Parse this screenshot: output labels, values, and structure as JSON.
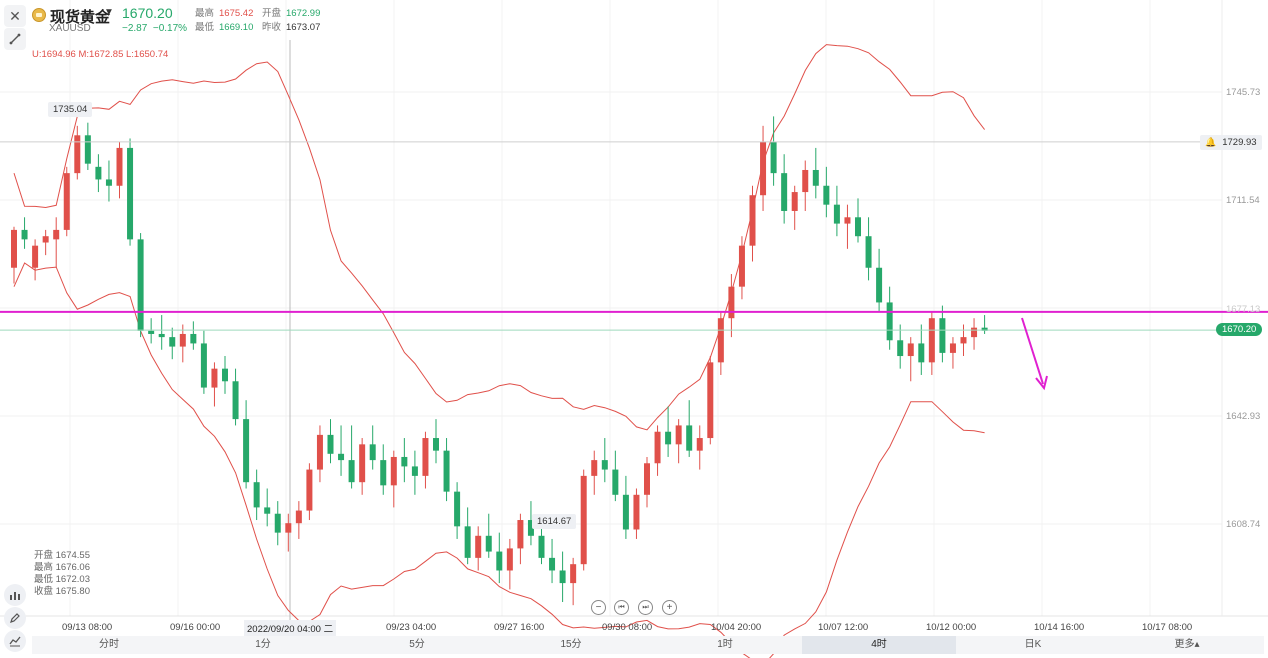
{
  "header": {
    "name": "现货黄金",
    "code": "XAUUSD",
    "price": "1670.20",
    "change": "−2.87",
    "change_pct": "−0.17%",
    "high_label": "最高",
    "high": "1675.42",
    "open_label": "开盘",
    "open": "1672.99",
    "low_label": "最低",
    "low": "1669.10",
    "prev_label": "昨收",
    "prev": "1673.07"
  },
  "boll": "U:1694.96  M:1672.85  L:1650.74",
  "price_axis": [
    "1745.73",
    "1711.54",
    "1677.13",
    "1642.93",
    "1608.74"
  ],
  "tags": {
    "alert": "1729.93",
    "last": "1670.20",
    "high": "1735.04",
    "low": "1614.67"
  },
  "ohlc": {
    "open": "开盘 1674.55",
    "high": "最高 1676.06",
    "low": "最低 1672.03",
    "close": "收盘 1675.80"
  },
  "time_axis": [
    "09/13 08:00",
    "09/16 00:00",
    "09/23 04:00",
    "09/27 16:00",
    "09/30 08:00",
    "10/04 20:00",
    "10/07 12:00",
    "10/12 00:00",
    "10/14 16:00",
    "10/17 08:00"
  ],
  "crosshair_time": "2022/09/20 04:00 二",
  "zoom": {
    "out": "−",
    "start": "⏮",
    "end": "⏭",
    "in": "+"
  },
  "tabs": [
    {
      "label": "分时",
      "active": false
    },
    {
      "label": "1分",
      "active": false
    },
    {
      "label": "5分",
      "active": false
    },
    {
      "label": "15分",
      "active": false
    },
    {
      "label": "1时",
      "active": false
    },
    {
      "label": "4时",
      "active": true
    },
    {
      "label": "日K",
      "active": false
    },
    {
      "label": "更多▴",
      "active": false
    }
  ],
  "colors": {
    "up": "#e0504a",
    "down": "#26a86a",
    "band": "#e0504a",
    "hline": "#e020d0",
    "arrow": "#e020d0"
  },
  "icons": [
    "close-icon",
    "draw-line-icon",
    "indicator-icon",
    "pencil-icon",
    "trend-icon",
    "bell-icon",
    "gold-coin-icon"
  ],
  "chart_data": {
    "type": "candlestick",
    "series_name": "XAUUSD",
    "prices": {
      "axis_ticks": [
        1745.73,
        1711.54,
        1677.13,
        1642.93,
        1608.74
      ],
      "last": 1670.2,
      "alert_level": 1729.93,
      "highest_marked": 1735.04,
      "lowest_marked": 1614.67,
      "horizontal_line": 1676.0
    },
    "candles": [
      [
        1690,
        1703,
        1685,
        1702
      ],
      [
        1702,
        1706,
        1696,
        1699
      ],
      [
        1690,
        1699,
        1686,
        1697
      ],
      [
        1698,
        1702,
        1694,
        1700
      ],
      [
        1699,
        1706,
        1690,
        1702
      ],
      [
        1702,
        1722,
        1700,
        1720
      ],
      [
        1720,
        1735,
        1718,
        1732
      ],
      [
        1732,
        1736,
        1721,
        1723
      ],
      [
        1722,
        1726,
        1714,
        1718
      ],
      [
        1718,
        1724,
        1711,
        1716
      ],
      [
        1716,
        1730,
        1712,
        1728
      ],
      [
        1728,
        1731,
        1697,
        1699
      ],
      [
        1699,
        1701,
        1668,
        1670
      ],
      [
        1670,
        1674,
        1666,
        1669
      ],
      [
        1669,
        1675,
        1664,
        1668
      ],
      [
        1668,
        1671,
        1661,
        1665
      ],
      [
        1665,
        1672,
        1660,
        1669
      ],
      [
        1669,
        1673,
        1664,
        1666
      ],
      [
        1666,
        1670,
        1650,
        1652
      ],
      [
        1652,
        1660,
        1646,
        1658
      ],
      [
        1658,
        1662,
        1650,
        1654
      ],
      [
        1654,
        1658,
        1640,
        1642
      ],
      [
        1642,
        1648,
        1620,
        1622
      ],
      [
        1622,
        1626,
        1610,
        1614
      ],
      [
        1614,
        1620,
        1608,
        1612
      ],
      [
        1612,
        1616,
        1602,
        1606
      ],
      [
        1606,
        1612,
        1600,
        1609
      ],
      [
        1609,
        1616,
        1604,
        1613
      ],
      [
        1613,
        1628,
        1610,
        1626
      ],
      [
        1626,
        1640,
        1622,
        1637
      ],
      [
        1637,
        1642,
        1628,
        1631
      ],
      [
        1631,
        1640,
        1624,
        1629
      ],
      [
        1629,
        1640,
        1620,
        1622
      ],
      [
        1622,
        1636,
        1618,
        1634
      ],
      [
        1634,
        1640,
        1626,
        1629
      ],
      [
        1629,
        1634,
        1618,
        1621
      ],
      [
        1621,
        1632,
        1614,
        1630
      ],
      [
        1630,
        1636,
        1622,
        1627
      ],
      [
        1627,
        1632,
        1618,
        1624
      ],
      [
        1624,
        1638,
        1620,
        1636
      ],
      [
        1636,
        1642,
        1628,
        1632
      ],
      [
        1632,
        1636,
        1616,
        1619
      ],
      [
        1619,
        1622,
        1604,
        1608
      ],
      [
        1608,
        1614,
        1596,
        1598
      ],
      [
        1598,
        1608,
        1594,
        1605
      ],
      [
        1605,
        1612,
        1598,
        1600
      ],
      [
        1600,
        1606,
        1590,
        1594
      ],
      [
        1594,
        1604,
        1588,
        1601
      ],
      [
        1601,
        1612,
        1596,
        1610
      ],
      [
        1610,
        1616,
        1602,
        1605
      ],
      [
        1605,
        1610,
        1596,
        1598
      ],
      [
        1598,
        1604,
        1590,
        1594
      ],
      [
        1594,
        1600,
        1584,
        1590
      ],
      [
        1590,
        1598,
        1583,
        1596
      ],
      [
        1596,
        1626,
        1594,
        1624
      ],
      [
        1624,
        1632,
        1618,
        1629
      ],
      [
        1629,
        1636,
        1622,
        1626
      ],
      [
        1626,
        1632,
        1616,
        1618
      ],
      [
        1618,
        1624,
        1604,
        1607
      ],
      [
        1607,
        1620,
        1604,
        1618
      ],
      [
        1618,
        1630,
        1614,
        1628
      ],
      [
        1628,
        1640,
        1624,
        1638
      ],
      [
        1638,
        1646,
        1630,
        1634
      ],
      [
        1634,
        1642,
        1628,
        1640
      ],
      [
        1640,
        1648,
        1630,
        1632
      ],
      [
        1632,
        1640,
        1626,
        1636
      ],
      [
        1636,
        1662,
        1634,
        1660
      ],
      [
        1660,
        1676,
        1656,
        1674
      ],
      [
        1674,
        1688,
        1668,
        1684
      ],
      [
        1684,
        1700,
        1680,
        1697
      ],
      [
        1697,
        1716,
        1692,
        1713
      ],
      [
        1713,
        1735,
        1708,
        1730
      ],
      [
        1730,
        1738,
        1716,
        1720
      ],
      [
        1720,
        1726,
        1704,
        1708
      ],
      [
        1708,
        1716,
        1702,
        1714
      ],
      [
        1714,
        1724,
        1708,
        1721
      ],
      [
        1721,
        1728,
        1712,
        1716
      ],
      [
        1716,
        1722,
        1706,
        1710
      ],
      [
        1710,
        1716,
        1700,
        1704
      ],
      [
        1704,
        1710,
        1696,
        1706
      ],
      [
        1706,
        1712,
        1698,
        1700
      ],
      [
        1700,
        1706,
        1686,
        1690
      ],
      [
        1690,
        1696,
        1676,
        1679
      ],
      [
        1679,
        1684,
        1664,
        1667
      ],
      [
        1667,
        1672,
        1658,
        1662
      ],
      [
        1662,
        1668,
        1654,
        1666
      ],
      [
        1666,
        1672,
        1656,
        1660
      ],
      [
        1660,
        1676,
        1656,
        1674
      ],
      [
        1674,
        1678,
        1660,
        1663
      ],
      [
        1663,
        1668,
        1658,
        1666
      ],
      [
        1666,
        1672,
        1662,
        1668
      ],
      [
        1668,
        1674,
        1664,
        1671
      ],
      [
        1671,
        1675,
        1669,
        1670
      ]
    ]
  }
}
